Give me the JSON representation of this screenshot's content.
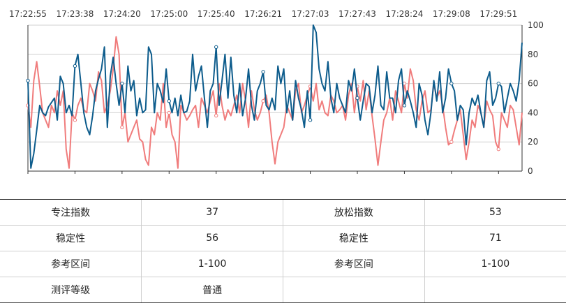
{
  "chart_data": {
    "type": "line",
    "x_ticks": [
      "17:22:55",
      "17:23:38",
      "17:24:20",
      "17:25:00",
      "17:25:40",
      "17:26:21",
      "17:27:03",
      "17:27:43",
      "17:28:24",
      "17:29:08",
      "17:29:51"
    ],
    "y_ticks": [
      0,
      20,
      40,
      60,
      80,
      100
    ],
    "ylim": [
      0,
      100
    ],
    "grid": true,
    "series": [
      {
        "color": "#0d5c8c",
        "values": [
          62,
          2,
          12,
          28,
          45,
          40,
          38,
          44,
          47,
          50,
          35,
          65,
          60,
          40,
          45,
          38,
          72,
          80,
          60,
          40,
          30,
          25,
          38,
          55,
          63,
          70,
          85,
          30,
          65,
          78,
          60,
          45,
          60,
          40,
          72,
          55,
          62,
          38,
          50,
          40,
          42,
          85,
          80,
          40,
          60,
          55,
          47,
          70,
          48,
          40,
          50,
          38,
          52,
          40,
          41,
          48,
          80,
          55,
          65,
          72,
          50,
          30,
          55,
          60,
          85,
          45,
          62,
          80,
          50,
          78,
          52,
          40,
          60,
          38,
          50,
          70,
          45,
          35,
          55,
          60,
          68,
          45,
          42,
          50,
          42,
          72,
          60,
          70,
          40,
          55,
          35,
          62,
          50,
          42,
          30,
          55,
          35,
          100,
          95,
          70,
          60,
          55,
          75,
          50,
          40,
          60,
          50,
          45,
          40,
          62,
          55,
          70,
          50,
          35,
          48,
          60,
          58,
          40,
          52,
          72,
          45,
          42,
          68,
          50,
          50,
          40,
          62,
          70,
          45,
          55,
          48,
          40,
          30,
          60,
          52,
          35,
          25,
          40,
          62,
          48,
          68,
          40,
          50,
          70,
          60,
          55,
          35,
          45,
          42,
          18,
          40,
          50,
          45,
          52,
          40,
          30,
          62,
          68,
          45,
          50,
          60,
          58,
          40,
          50,
          60,
          55,
          48,
          62,
          88
        ]
      },
      {
        "color": "#f07c7c",
        "values": [
          45,
          30,
          62,
          75,
          58,
          40,
          35,
          30,
          45,
          40,
          55,
          45,
          55,
          15,
          2,
          40,
          35,
          45,
          50,
          42,
          40,
          60,
          55,
          48,
          68,
          62,
          40,
          45,
          55,
          70,
          92,
          80,
          30,
          40,
          20,
          25,
          30,
          35,
          22,
          20,
          8,
          4,
          30,
          25,
          40,
          35,
          60,
          30,
          40,
          25,
          20,
          2,
          45,
          40,
          35,
          38,
          42,
          45,
          30,
          50,
          45,
          40,
          48,
          55,
          38,
          60,
          45,
          35,
          42,
          38,
          45,
          52,
          40,
          60,
          48,
          30,
          55,
          42,
          35,
          40,
          48,
          52,
          40,
          20,
          5,
          20,
          25,
          30,
          45,
          40,
          35,
          55,
          60,
          40,
          45,
          52,
          58,
          48,
          60,
          42,
          48,
          40,
          38,
          52,
          48,
          40,
          42,
          45,
          35,
          52,
          60,
          40,
          58,
          48,
          62,
          42,
          55,
          38,
          22,
          4,
          20,
          35,
          40,
          50,
          35,
          55,
          48,
          40,
          60,
          50,
          70,
          62,
          42,
          35,
          48,
          55,
          40,
          42,
          60,
          50,
          55,
          45,
          30,
          18,
          20,
          28,
          35,
          42,
          25,
          8,
          20,
          35,
          30,
          45,
          40,
          30,
          48,
          42,
          38,
          20,
          15,
          40,
          35,
          30,
          45,
          42,
          30,
          18,
          40
        ]
      }
    ]
  },
  "table": {
    "rows": [
      [
        "专注指数",
        "37",
        "放松指数",
        "53"
      ],
      [
        "稳定性",
        "56",
        "稳定性",
        "71"
      ],
      [
        "参考区间",
        "1-100",
        "参考区间",
        "1-100"
      ],
      [
        "测评等级",
        "普通",
        "",
        ""
      ]
    ]
  }
}
